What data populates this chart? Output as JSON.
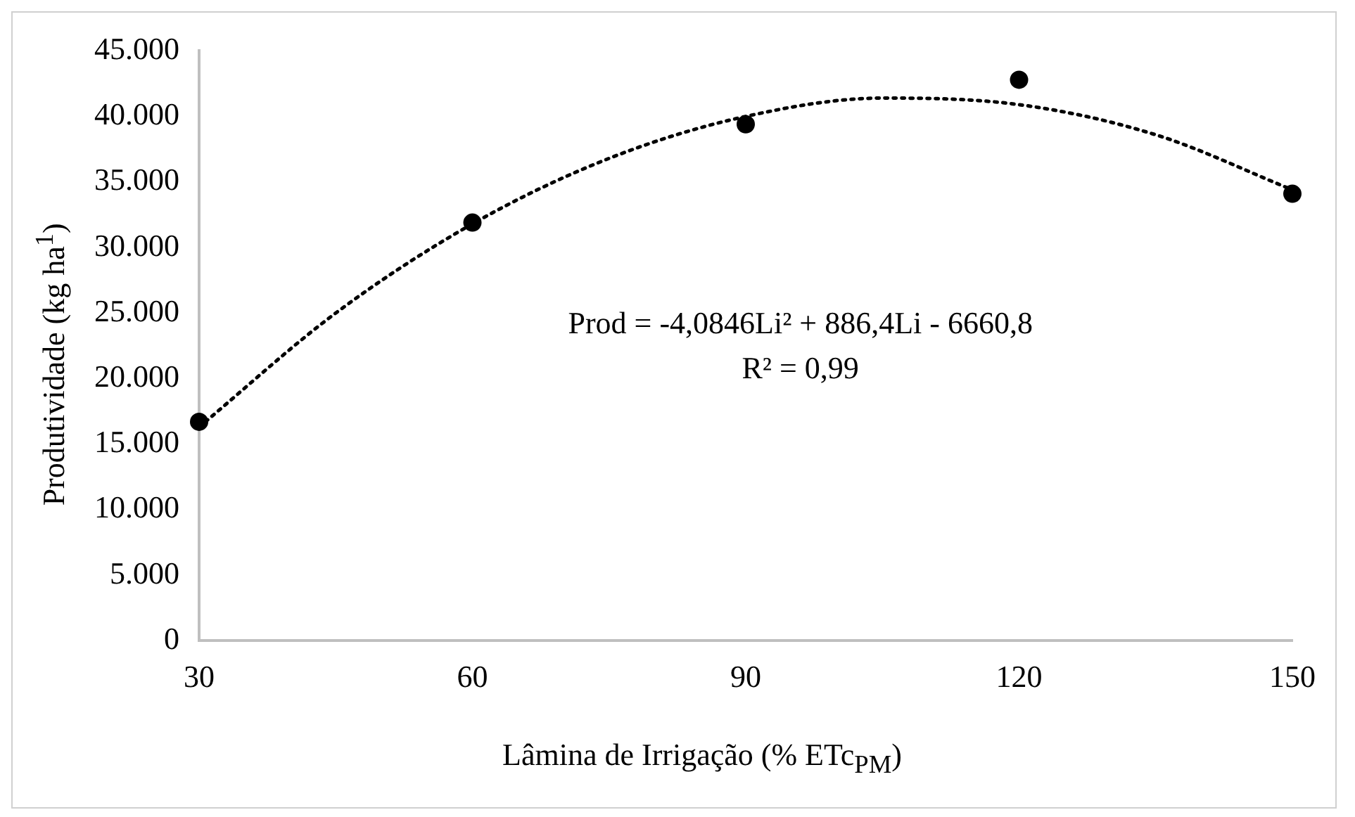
{
  "chart_data": {
    "type": "scatter",
    "xlabel": "Lâmina de Irrigação (% ETc$_{PM}$)",
    "ylabel": "Produtividade (kg ha$^{1}$)",
    "x": [
      30,
      60,
      90,
      120,
      150
    ],
    "series": [
      {
        "type": "scatter",
        "color": "#000000",
        "marker": "circle",
        "values": [
          16700,
          31900,
          39400,
          42800,
          34100
        ]
      },
      {
        "type": "line",
        "color": "#000000",
        "marker": "none",
        "line_style": "dotted",
        "x": [
          30,
          45,
          60,
          75,
          90,
          105,
          120,
          135,
          150
        ],
        "values": [
          16300,
          25000,
          31800,
          36800,
          40000,
          41400,
          40900,
          38600,
          34400
        ]
      }
    ],
    "xlim": [
      30,
      150
    ],
    "xticks": [
      30,
      60,
      90,
      120,
      150
    ],
    "ylim": [
      0,
      45000
    ],
    "yticks": [
      {
        "value": 0,
        "label": "0"
      },
      {
        "value": 5000,
        "label": "5.000"
      },
      {
        "value": 10000,
        "label": "10.000"
      },
      {
        "value": 15000,
        "label": "15.000"
      },
      {
        "value": 20000,
        "label": "20.000"
      },
      {
        "value": 25000,
        "label": "25.000"
      },
      {
        "value": 30000,
        "label": "30.000"
      },
      {
        "value": 35000,
        "label": "35.000"
      },
      {
        "value": 40000,
        "label": "40.000"
      },
      {
        "value": 45000,
        "label": "45.000"
      }
    ],
    "annotations": [
      "Prod = -4,0846Li² + 886,4Li - 6660,8",
      "R² = 0,99"
    ],
    "grid": false,
    "legend": false
  }
}
